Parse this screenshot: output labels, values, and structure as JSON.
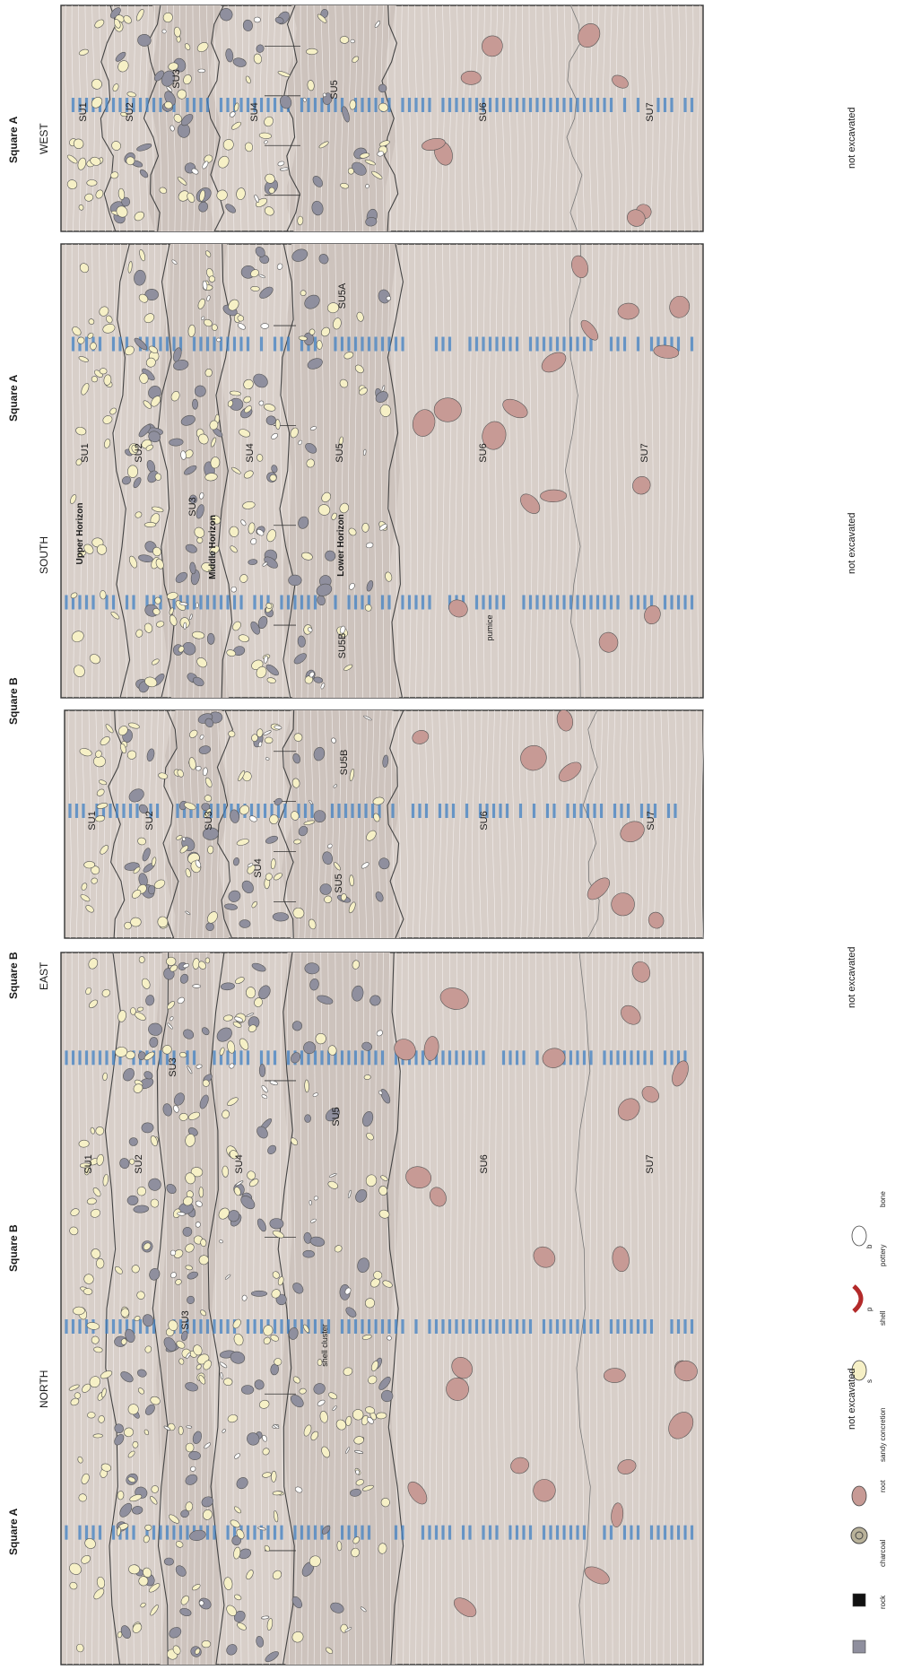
{
  "figure": {
    "panels": [
      {
        "id": "west",
        "side_label": "WEST",
        "square_labels": [
          "Square A"
        ],
        "not_excavated": "not excavated",
        "units": [
          "SU1",
          "SU2",
          "SU3",
          "SU4",
          "SU5",
          "SU6",
          "SU7"
        ]
      },
      {
        "id": "south",
        "side_label": "SOUTH",
        "square_labels": [
          "Square A",
          "Square B"
        ],
        "not_excavated": "not excavated",
        "units": [
          "SU1",
          "SU2",
          "SU3",
          "SU4",
          "SU5",
          "SU5A",
          "SU5B",
          "SU6",
          "SU7"
        ],
        "horizons": [
          "Upper Horizon",
          "Middle Horizon",
          "Lower Horizon"
        ],
        "annotations": [
          "pumice"
        ]
      },
      {
        "id": "east",
        "side_label": "EAST",
        "square_labels": [
          "Square B"
        ],
        "not_excavated": "not excavated",
        "units": [
          "SU1",
          "SU2",
          "SU3",
          "SU4",
          "SU5",
          "SU5B",
          "SU6",
          "SU7"
        ]
      },
      {
        "id": "north",
        "side_label": "NORTH",
        "square_labels": [
          "Square B",
          "Square A"
        ],
        "not_excavated": "not excavated",
        "units": [
          "SU1",
          "SU2",
          "SU3",
          "SU4",
          "SU5",
          "SU6",
          "SU7"
        ],
        "annotations": [
          "shell cluster"
        ]
      }
    ],
    "legend": {
      "items": [
        {
          "label": "rock",
          "color": "#8f8f9e"
        },
        {
          "label": "charcoal",
          "color": "#111111"
        },
        {
          "label": "root",
          "color": "#b9b29a"
        },
        {
          "label": "sandy concretion",
          "color": "#c79a95"
        },
        {
          "label": "shell",
          "color": "#f6f0c6",
          "code": "s"
        },
        {
          "label": "pottery",
          "color": "#b32a2a",
          "code": "p"
        },
        {
          "label": "bone",
          "color": "#ffffff",
          "code": "b"
        }
      ]
    },
    "colors": {
      "matrix": "#d8cfc9",
      "band_dark": "#cdc3bd",
      "xu_labels": "#3f7fc1",
      "boundary": "#444444"
    }
  }
}
